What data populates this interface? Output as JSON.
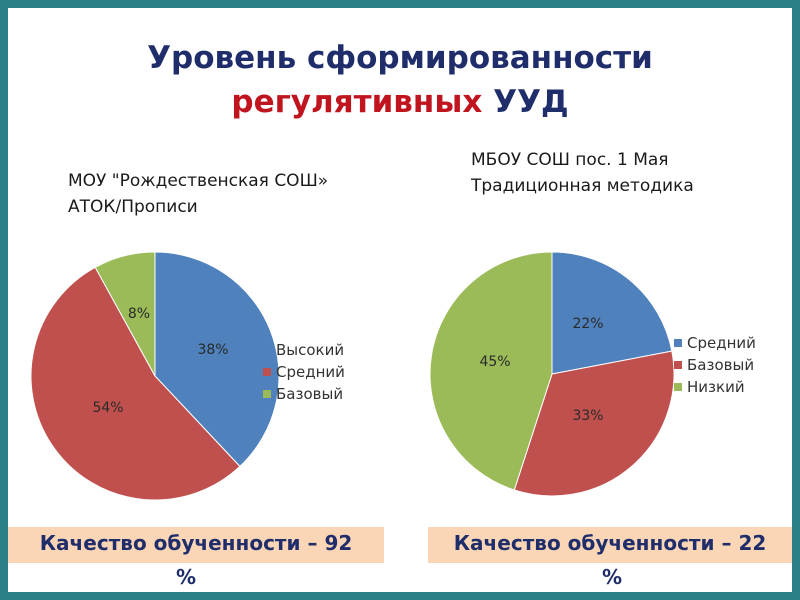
{
  "title": {
    "line1": "Уровень сформированности",
    "emphasis": "регулятивных",
    "rest": " УУД"
  },
  "chart_data": [
    {
      "type": "pie",
      "title_lines": [
        "МОУ \"Рождественская СОШ»",
        "АТОК/Прописи"
      ],
      "categories": [
        "Высокий",
        "Средний",
        "Базовый"
      ],
      "values": [
        38,
        54,
        8
      ],
      "labels": [
        "38%",
        "54%",
        "8%"
      ],
      "colors": [
        "#4f81bd",
        "#c0504d",
        "#9bbb59"
      ],
      "legend": "right"
    },
    {
      "type": "pie",
      "title_lines": [
        "МБОУ СОШ пос. 1 Мая",
        "Традиционная методика"
      ],
      "categories": [
        "Средний",
        "Базовый",
        "Низкий"
      ],
      "values": [
        22,
        33,
        45
      ],
      "labels": [
        "22%",
        "33%",
        "45%"
      ],
      "colors": [
        "#4f81bd",
        "#c0504d",
        "#9bbb59"
      ],
      "legend": "right"
    }
  ],
  "quality": [
    {
      "text": "Качество обученности – 92",
      "unit": "%"
    },
    {
      "text": "Качество обученности – 22",
      "unit": "%"
    }
  ]
}
